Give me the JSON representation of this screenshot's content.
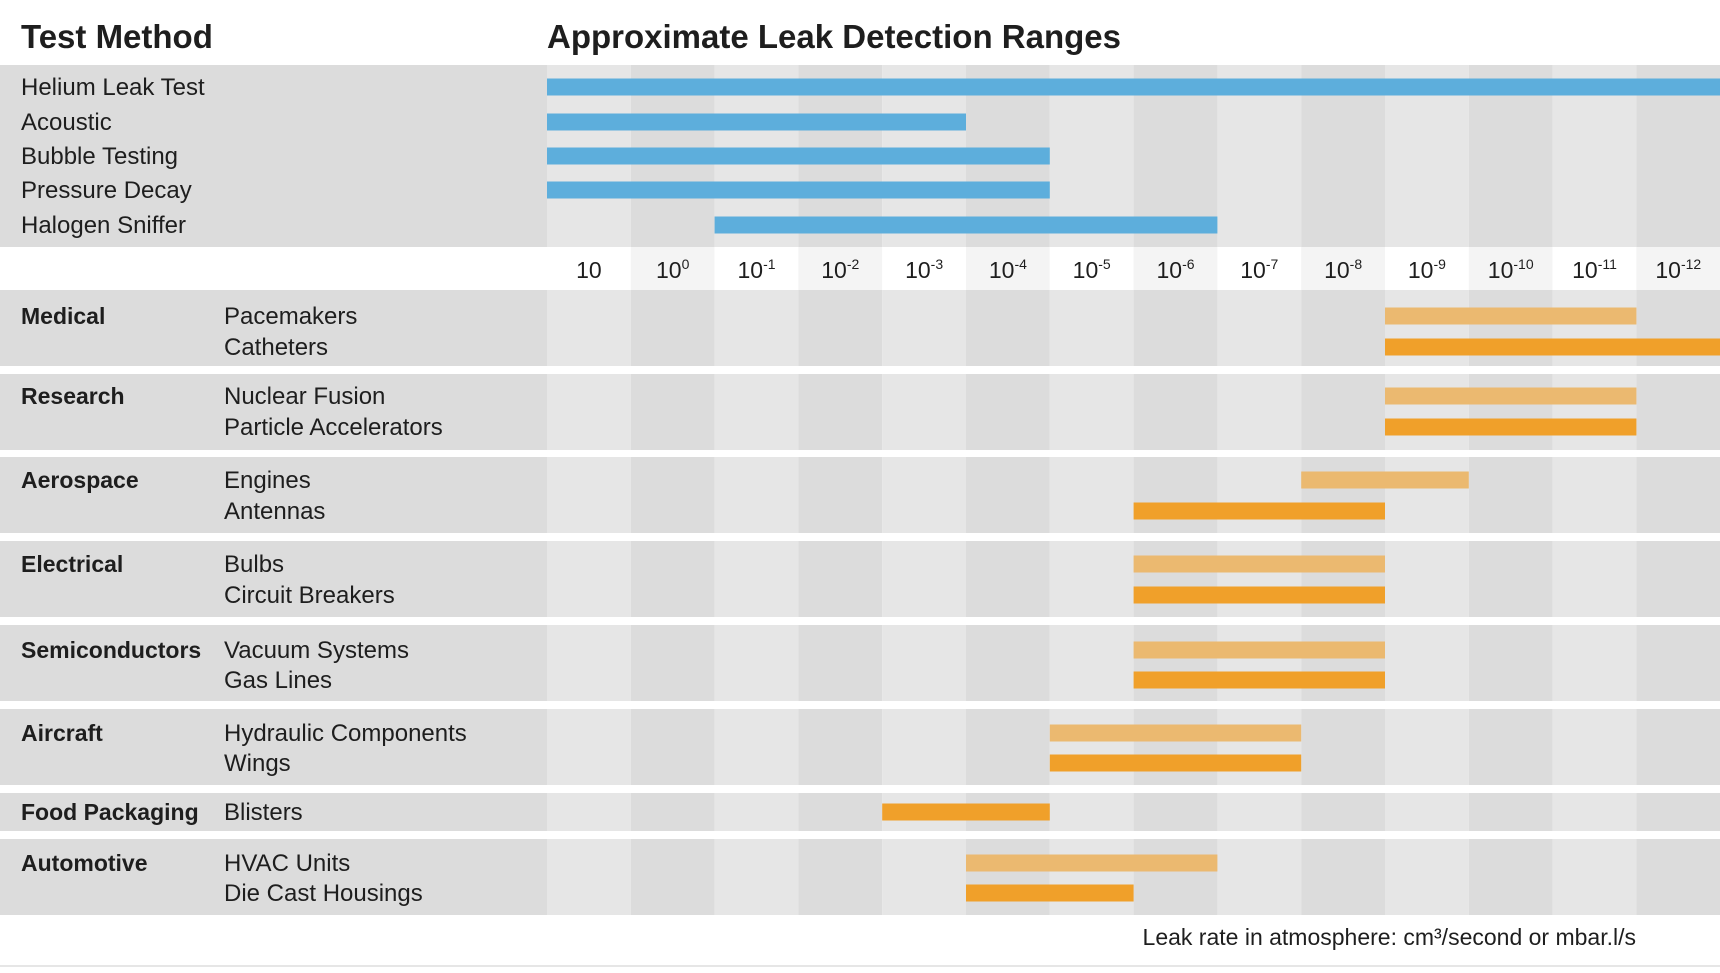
{
  "chart_data": {
    "type": "bar",
    "title": "Approximate Leak Detection Ranges",
    "method_header": "Test Method",
    "axis_note": "Leak rate in atmosphere: cm³/second or mbar.l/s",
    "ticks": [
      {
        "base": "10",
        "exp": ""
      },
      {
        "base": "10",
        "exp": "0"
      },
      {
        "base": "10",
        "exp": "-1"
      },
      {
        "base": "10",
        "exp": "-2"
      },
      {
        "base": "10",
        "exp": "-3"
      },
      {
        "base": "10",
        "exp": "-4"
      },
      {
        "base": "10",
        "exp": "-5"
      },
      {
        "base": "10",
        "exp": "-6"
      },
      {
        "base": "10",
        "exp": "-7"
      },
      {
        "base": "10",
        "exp": "-8"
      },
      {
        "base": "10",
        "exp": "-9"
      },
      {
        "base": "10",
        "exp": "-10"
      },
      {
        "base": "10",
        "exp": "-11"
      },
      {
        "base": "10",
        "exp": "-12"
      }
    ],
    "methods": [
      {
        "label": "Helium Leak Test",
        "start": 0,
        "end": 14
      },
      {
        "label": "Acoustic",
        "start": 0,
        "end": 5
      },
      {
        "label": "Bubble Testing",
        "start": 0,
        "end": 6
      },
      {
        "label": "Pressure Decay",
        "start": 0,
        "end": 6
      },
      {
        "label": "Halogen Sniffer",
        "start": 2,
        "end": 8
      }
    ],
    "industries": [
      {
        "name": "Medical",
        "items": [
          {
            "label": "Pacemakers",
            "start": 10,
            "end": 13
          },
          {
            "label": "Catheters",
            "start": 10,
            "end": 14
          }
        ]
      },
      {
        "name": "Research",
        "items": [
          {
            "label": "Nuclear Fusion",
            "start": 10,
            "end": 13
          },
          {
            "label": "Particle Accelerators",
            "start": 10,
            "end": 13
          }
        ]
      },
      {
        "name": "Aerospace",
        "items": [
          {
            "label": "Engines",
            "start": 9,
            "end": 11
          },
          {
            "label": "Antennas",
            "start": 7,
            "end": 10
          }
        ]
      },
      {
        "name": "Electrical",
        "items": [
          {
            "label": "Bulbs",
            "start": 7,
            "end": 10
          },
          {
            "label": "Circuit Breakers",
            "start": 7,
            "end": 10
          }
        ]
      },
      {
        "name": "Semiconductors",
        "items": [
          {
            "label": "Vacuum Systems",
            "start": 7,
            "end": 10
          },
          {
            "label": "Gas Lines",
            "start": 7,
            "end": 10
          }
        ]
      },
      {
        "name": "Aircraft",
        "items": [
          {
            "label": "Hydraulic Components",
            "start": 6,
            "end": 9
          },
          {
            "label": "Wings",
            "start": 6,
            "end": 9
          }
        ]
      },
      {
        "name": "Food Packaging",
        "items": [
          {
            "label": "Blisters",
            "start": 4,
            "end": 6
          }
        ]
      },
      {
        "name": "Automotive",
        "items": [
          {
            "label": "HVAC Units",
            "start": 5,
            "end": 8
          },
          {
            "label": "Die Cast Housings",
            "start": 5,
            "end": 7
          }
        ]
      }
    ],
    "colors": {
      "method_bar": "#5daedc",
      "item_bar_light": "#ebb970",
      "item_bar_dark": "#f0a02a",
      "band_dark": "#dcdcdc",
      "band_light": "#e6e6e6",
      "label_bg": "#dcdcdc"
    }
  }
}
